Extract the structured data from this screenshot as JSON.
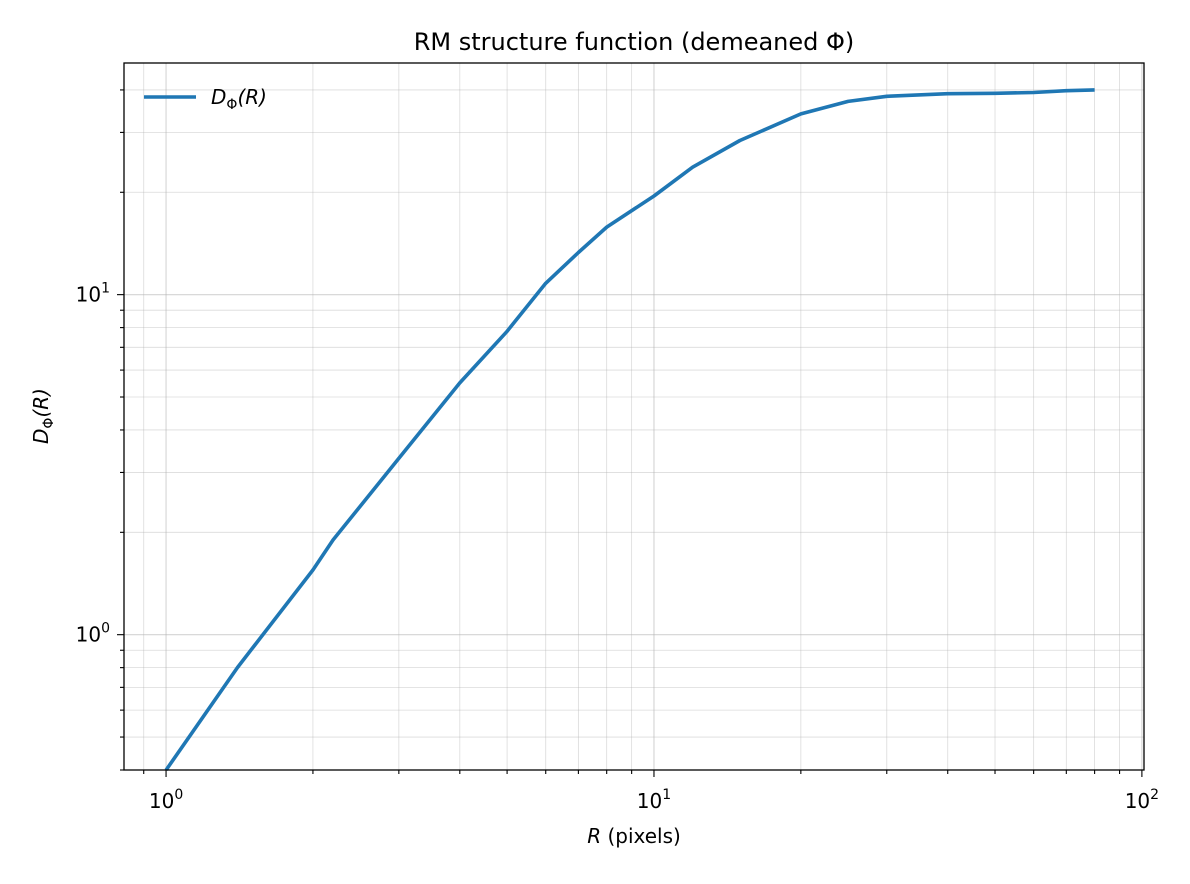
{
  "chart_data": {
    "type": "line",
    "title": "RM structure function (demeaned Φ)",
    "xlabel": {
      "var": "R",
      "rest": " (pixels)"
    },
    "ylabel": {
      "var": "D",
      "sub": "Φ",
      "rest": "(R)"
    },
    "xscale": "log",
    "yscale": "log",
    "xlim": [
      0.82,
      101
    ],
    "ylim": [
      0.4,
      48
    ],
    "grid": true,
    "legend_position": "upper-left",
    "x_major_ticks": [
      {
        "value": 1,
        "base": "10",
        "exp": "0"
      },
      {
        "value": 10,
        "base": "10",
        "exp": "1"
      },
      {
        "value": 100,
        "base": "10",
        "exp": "2"
      }
    ],
    "y_major_ticks": [
      {
        "value": 1,
        "base": "10",
        "exp": "0"
      },
      {
        "value": 10,
        "base": "10",
        "exp": "1"
      }
    ],
    "series": [
      {
        "name": {
          "var": "D",
          "sub": "Φ",
          "rest": "(R)"
        },
        "color": "#1f77b4",
        "x": [
          1,
          1.4,
          2,
          2.2,
          3,
          4,
          5,
          6,
          7,
          8,
          10,
          12,
          15,
          20,
          25,
          30,
          40,
          50,
          60,
          70,
          80
        ],
        "y": [
          0.4,
          0.8,
          1.55,
          1.9,
          3.3,
          5.5,
          7.8,
          10.8,
          13.3,
          15.8,
          19.5,
          23.7,
          28.4,
          34.0,
          37.0,
          38.3,
          39.0,
          39.1,
          39.3,
          39.8,
          40.0
        ]
      }
    ]
  }
}
